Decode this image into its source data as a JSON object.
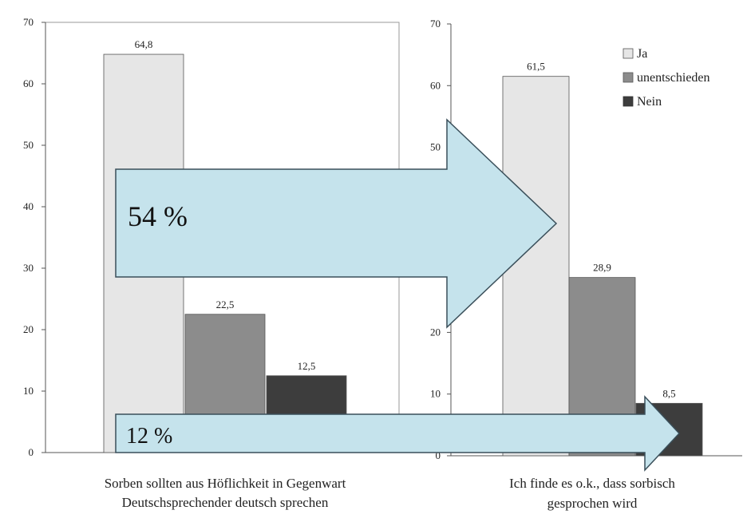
{
  "chart_data": [
    {
      "type": "bar",
      "categories": [
        "Ja",
        "unentschieden",
        "Nein"
      ],
      "values": [
        64.8,
        22.5,
        12.5
      ],
      "data_labels": [
        "64,8",
        "22,5",
        "12,5"
      ],
      "title": "Sorben sollten aus Höflichkeit in Gegenwart Deutschsprechender deutsch sprechen",
      "title_lines": [
        "Sorben sollten aus Höflichkeit in Gegenwart",
        "Deutschsprechender deutsch sprechen"
      ],
      "ylim": [
        0,
        70
      ],
      "yticks": [
        "0",
        "10",
        "20",
        "30",
        "40",
        "50",
        "60",
        "70"
      ],
      "grid": false,
      "legend": "none"
    },
    {
      "type": "bar",
      "categories": [
        "Ja",
        "unentschieden",
        "Nein"
      ],
      "values": [
        61.5,
        28.9,
        8.5
      ],
      "data_labels": [
        "61,5",
        "28,9",
        "8,5"
      ],
      "title": "Ich finde es o.k., dass sorbisch gesprochen wird",
      "title_lines": [
        "Ich finde es o.k., dass sorbisch",
        "gesprochen wird"
      ],
      "ylim": [
        0,
        70
      ],
      "yticks": [
        "0",
        "10",
        "20",
        "30",
        "40",
        "50",
        "60",
        "70"
      ],
      "grid": false,
      "legend": "top-right"
    }
  ],
  "legend": {
    "items": [
      {
        "label": "Ja",
        "color": "#e6e6e6"
      },
      {
        "label": "unentschieden",
        "color": "#8c8c8c"
      },
      {
        "label": "Nein",
        "color": "#3d3d3d"
      }
    ]
  },
  "annotations": {
    "arrow_big": "54 %",
    "arrow_small": "12 %",
    "arrow_fill": "#c5e3ec",
    "arrow_stroke": "#3a4f5a"
  }
}
